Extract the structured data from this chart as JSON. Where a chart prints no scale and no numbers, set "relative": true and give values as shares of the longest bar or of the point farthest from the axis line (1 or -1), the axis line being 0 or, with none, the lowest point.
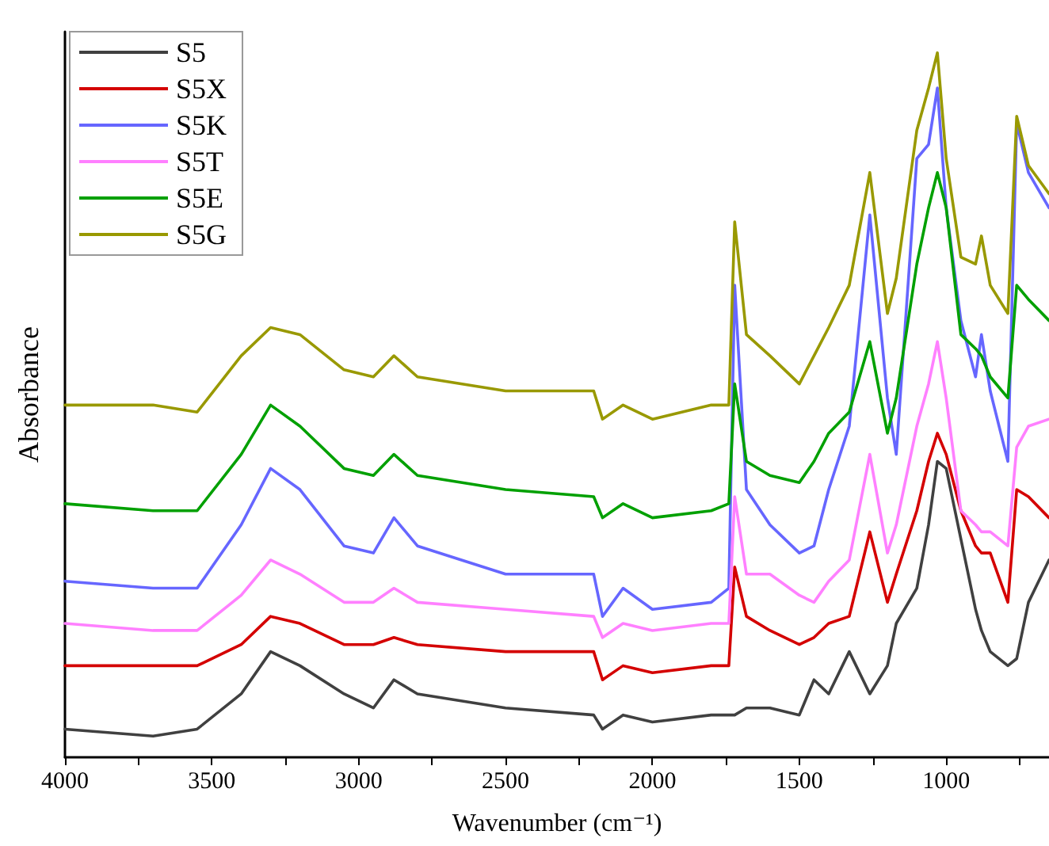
{
  "chart_data": {
    "type": "line",
    "relative": true,
    "xlabel": "Wavenumber (cm⁻¹)",
    "ylabel": "Absorbance",
    "xlim": [
      4000,
      650
    ],
    "xticks": [
      4000,
      {
        "value": 3750,
        "label": null
      },
      3500,
      {
        "value": 3250,
        "label": null
      },
      3000,
      {
        "value": 2750,
        "label": null
      },
      2500,
      {
        "value": 2250,
        "label": null
      },
      2000,
      {
        "value": 1750,
        "label": null
      },
      1500,
      {
        "value": 1250,
        "label": null
      },
      1000,
      {
        "value": 750,
        "label": null
      }
    ],
    "x": [
      4000,
      3700,
      3550,
      3400,
      3300,
      3200,
      3050,
      2950,
      2880,
      2800,
      2500,
      2200,
      2170,
      2100,
      2000,
      1800,
      1740,
      1720,
      1680,
      1600,
      1500,
      1450,
      1400,
      1330,
      1260,
      1200,
      1170,
      1100,
      1060,
      1030,
      1000,
      950,
      900,
      880,
      850,
      790,
      760,
      720,
      650
    ],
    "series": [
      {
        "name": "S5",
        "color": "#404040",
        "values": [
          0.04,
          0.03,
          0.04,
          0.09,
          0.15,
          0.13,
          0.09,
          0.07,
          0.11,
          0.09,
          0.07,
          0.06,
          0.04,
          0.06,
          0.05,
          0.06,
          0.06,
          0.06,
          0.07,
          0.07,
          0.06,
          0.11,
          0.09,
          0.15,
          0.09,
          0.13,
          0.19,
          0.24,
          0.33,
          0.42,
          0.41,
          0.31,
          0.21,
          0.18,
          0.15,
          0.13,
          0.14,
          0.22,
          0.28
        ]
      },
      {
        "name": "S5X",
        "color": "#d40000",
        "values": [
          0.13,
          0.13,
          0.13,
          0.16,
          0.2,
          0.19,
          0.16,
          0.16,
          0.17,
          0.16,
          0.15,
          0.15,
          0.11,
          0.13,
          0.12,
          0.13,
          0.13,
          0.27,
          0.2,
          0.18,
          0.16,
          0.17,
          0.19,
          0.2,
          0.32,
          0.22,
          0.26,
          0.35,
          0.42,
          0.46,
          0.43,
          0.35,
          0.3,
          0.29,
          0.29,
          0.22,
          0.38,
          0.37,
          0.34
        ]
      },
      {
        "name": "S5K",
        "color": "#6666ff",
        "values": [
          0.25,
          0.24,
          0.24,
          0.33,
          0.41,
          0.38,
          0.3,
          0.29,
          0.34,
          0.3,
          0.26,
          0.26,
          0.2,
          0.24,
          0.21,
          0.22,
          0.24,
          0.67,
          0.38,
          0.33,
          0.29,
          0.3,
          0.38,
          0.47,
          0.77,
          0.51,
          0.43,
          0.85,
          0.87,
          0.95,
          0.78,
          0.62,
          0.54,
          0.6,
          0.52,
          0.42,
          0.9,
          0.83,
          0.78
        ]
      },
      {
        "name": "S5T",
        "color": "#ff80ff",
        "values": [
          0.19,
          0.18,
          0.18,
          0.23,
          0.28,
          0.26,
          0.22,
          0.22,
          0.24,
          0.22,
          0.21,
          0.2,
          0.17,
          0.19,
          0.18,
          0.19,
          0.19,
          0.37,
          0.26,
          0.26,
          0.23,
          0.22,
          0.25,
          0.28,
          0.43,
          0.29,
          0.33,
          0.47,
          0.53,
          0.59,
          0.51,
          0.35,
          0.33,
          0.32,
          0.32,
          0.3,
          0.44,
          0.47,
          0.48
        ]
      },
      {
        "name": "S5E",
        "color": "#00a000",
        "values": [
          0.36,
          0.35,
          0.35,
          0.43,
          0.5,
          0.47,
          0.41,
          0.4,
          0.43,
          0.4,
          0.38,
          0.37,
          0.34,
          0.36,
          0.34,
          0.35,
          0.36,
          0.53,
          0.42,
          0.4,
          0.39,
          0.42,
          0.46,
          0.49,
          0.59,
          0.46,
          0.51,
          0.7,
          0.78,
          0.83,
          0.78,
          0.6,
          0.58,
          0.57,
          0.54,
          0.51,
          0.67,
          0.65,
          0.62
        ]
      },
      {
        "name": "S5G",
        "color": "#999900",
        "values": [
          0.5,
          0.5,
          0.49,
          0.57,
          0.61,
          0.6,
          0.55,
          0.54,
          0.57,
          0.54,
          0.52,
          0.52,
          0.48,
          0.5,
          0.48,
          0.5,
          0.5,
          0.76,
          0.6,
          0.57,
          0.53,
          0.57,
          0.61,
          0.67,
          0.83,
          0.63,
          0.68,
          0.89,
          0.95,
          1,
          0.85,
          0.71,
          0.7,
          0.74,
          0.67,
          0.63,
          0.91,
          0.84,
          0.8
        ]
      }
    ],
    "legend": "top left",
    "grid": false,
    "marker": "none"
  }
}
